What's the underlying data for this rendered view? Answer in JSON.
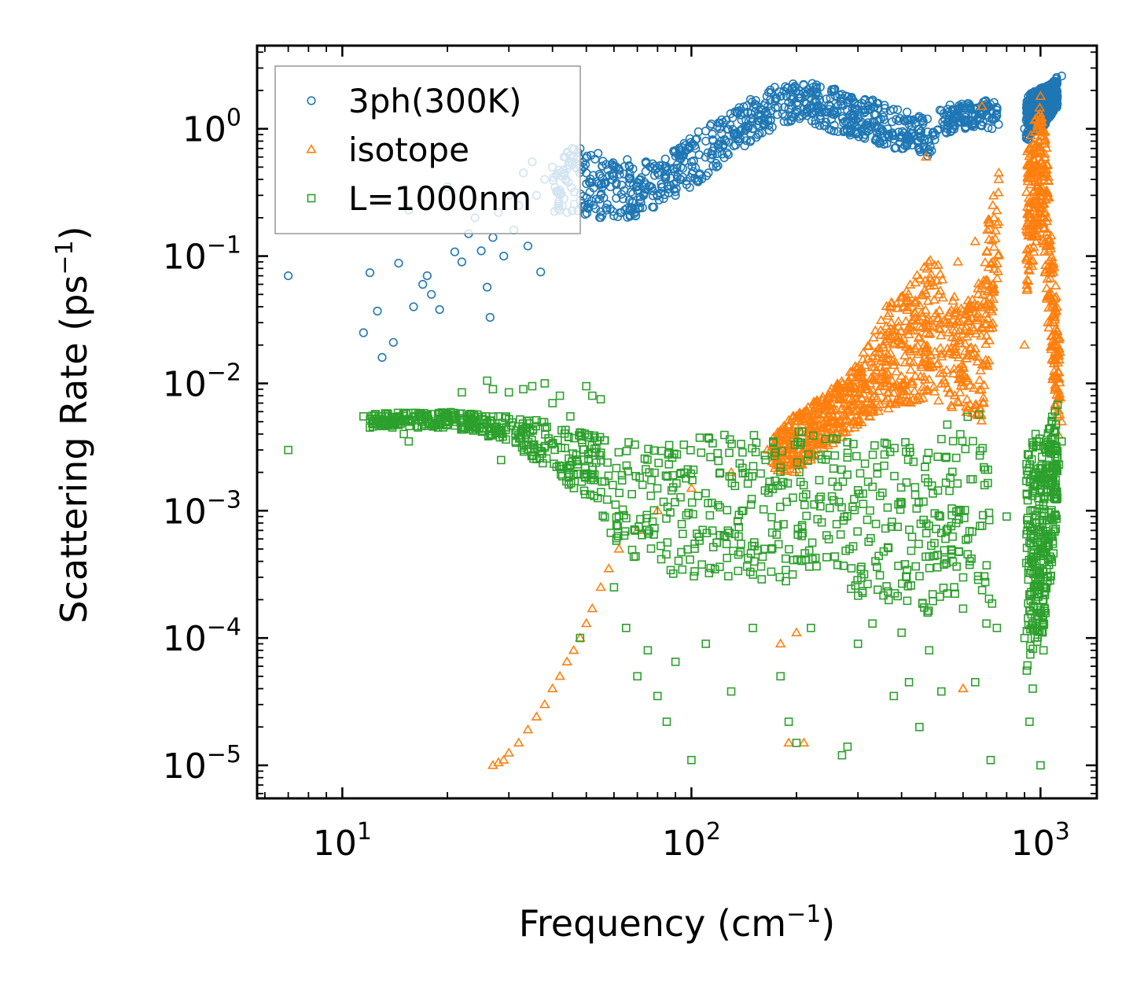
{
  "chart_data": {
    "type": "scatter",
    "xscale": "log",
    "yscale": "log",
    "xlim": [
      5.7,
      1450
    ],
    "ylim": [
      5.5e-06,
      4.5
    ],
    "xlabel": "Frequency (cm",
    "xlabel_sup": "−1",
    "xlabel_end": ")",
    "ylabel": "Scattering Rate (ps",
    "ylabel_sup": "−1",
    "ylabel_end": ")",
    "x_ticks": [
      {
        "value": 10,
        "base": "10",
        "exp": "1"
      },
      {
        "value": 100,
        "base": "10",
        "exp": "2"
      },
      {
        "value": 1000,
        "base": "10",
        "exp": "3"
      }
    ],
    "y_ticks": [
      {
        "value": 1e-05,
        "base": "10",
        "exp": "−5"
      },
      {
        "value": 0.0001,
        "base": "10",
        "exp": "−4"
      },
      {
        "value": 0.001,
        "base": "10",
        "exp": "−3"
      },
      {
        "value": 0.01,
        "base": "10",
        "exp": "−2"
      },
      {
        "value": 0.1,
        "base": "10",
        "exp": "−1"
      },
      {
        "value": 1,
        "base": "10",
        "exp": "0"
      }
    ],
    "legend_position": "top-left",
    "series": [
      {
        "name": "3ph(300K)",
        "marker": "circle",
        "color": "#1f77b4",
        "points": [
          [
            7.0,
            0.07
          ],
          [
            11.5,
            0.025
          ],
          [
            12.0,
            0.074
          ],
          [
            12.6,
            0.037
          ],
          [
            13.0,
            0.016
          ],
          [
            14.0,
            0.021
          ],
          [
            14.5,
            0.088
          ],
          [
            15.5,
            0.23
          ],
          [
            16.0,
            0.04
          ],
          [
            17.0,
            0.06
          ],
          [
            17.5,
            0.07
          ],
          [
            18.0,
            0.05
          ],
          [
            19.0,
            0.038
          ],
          [
            20.0,
            0.35
          ],
          [
            21.0,
            0.108
          ],
          [
            22.0,
            0.09
          ],
          [
            23.0,
            0.15
          ],
          [
            24.0,
            0.2
          ],
          [
            25.0,
            0.11
          ],
          [
            26.0,
            0.057
          ],
          [
            26.5,
            0.033
          ],
          [
            27.0,
            0.14
          ],
          [
            28.0,
            0.22
          ],
          [
            29.0,
            0.1
          ],
          [
            30.0,
            0.3
          ],
          [
            31.0,
            0.16
          ],
          [
            32.0,
            0.25
          ],
          [
            33.0,
            0.45
          ],
          [
            34.0,
            0.12
          ],
          [
            35.0,
            0.55
          ],
          [
            36.0,
            0.3
          ],
          [
            37.0,
            0.075
          ],
          [
            38.0,
            0.4
          ],
          [
            40.0,
            0.5
          ],
          [
            42.0,
            0.33
          ],
          [
            44.0,
            0.22
          ],
          [
            46.0,
            0.6
          ],
          [
            48.0,
            0.7
          ],
          [
            50.0,
            0.45
          ],
          [
            55.0,
            0.3
          ],
          [
            60.0,
            0.5
          ],
          [
            70.0,
            0.35
          ],
          [
            80.0,
            0.45
          ],
          [
            90.0,
            0.3
          ],
          [
            100.0,
            0.55
          ],
          [
            110.0,
            0.8
          ],
          [
            120.0,
            0.7
          ],
          [
            140.0,
            1.0
          ],
          [
            160.0,
            1.4
          ],
          [
            180.0,
            1.8
          ],
          [
            200.0,
            1.6
          ],
          [
            220.0,
            1.9
          ],
          [
            250.0,
            1.5
          ],
          [
            300.0,
            1.2
          ],
          [
            350.0,
            1.0
          ],
          [
            400.0,
            0.85
          ],
          [
            450.0,
            0.7
          ],
          [
            500.0,
            0.9
          ],
          [
            550.0,
            1.2
          ],
          [
            600.0,
            1.4
          ],
          [
            650.0,
            1.3
          ],
          [
            700.0,
            1.5
          ],
          [
            750.0,
            1.4
          ],
          [
            900.0,
            1.0
          ],
          [
            950.0,
            1.8
          ],
          [
            1000.0,
            1.2
          ],
          [
            1050.0,
            1.7
          ],
          [
            1100.0,
            2.2
          ],
          [
            1150.0,
            2.6
          ]
        ],
        "band": [
          [
            40,
            0.22,
            0.75
          ],
          [
            55,
            0.2,
            0.65
          ],
          [
            70,
            0.2,
            0.55
          ],
          [
            85,
            0.28,
            0.6
          ],
          [
            100,
            0.35,
            0.9
          ],
          [
            120,
            0.5,
            1.2
          ],
          [
            140,
            0.7,
            1.6
          ],
          [
            160,
            0.9,
            2.0
          ],
          [
            180,
            1.1,
            2.2
          ],
          [
            210,
            1.2,
            2.4
          ],
          [
            240,
            1.0,
            2.2
          ],
          [
            280,
            0.9,
            1.9
          ],
          [
            330,
            0.8,
            1.7
          ],
          [
            380,
            0.7,
            1.5
          ],
          [
            430,
            0.65,
            1.3
          ],
          [
            480,
            0.6,
            1.2
          ],
          [
            520,
            0.9,
            1.5
          ],
          [
            600,
            1.0,
            1.6
          ],
          [
            700,
            1.0,
            1.7
          ],
          [
            760,
            1.0,
            1.6
          ]
        ],
        "band2": [
          [
            910,
            0.8,
            1.8
          ],
          [
            960,
            0.9,
            2.0
          ],
          [
            1010,
            1.0,
            2.1
          ],
          [
            1060,
            1.2,
            2.2
          ],
          [
            1120,
            1.5,
            2.6
          ]
        ]
      },
      {
        "name": "isotope",
        "marker": "triangle",
        "color": "#ff7f0e",
        "points": [
          [
            27.0,
            1e-05
          ],
          [
            28.0,
            1.05e-05
          ],
          [
            29.0,
            1.1e-05
          ],
          [
            30.0,
            1.25e-05
          ],
          [
            32.0,
            1.5e-05
          ],
          [
            34.0,
            1.9e-05
          ],
          [
            36.0,
            2.4e-05
          ],
          [
            38.0,
            3e-05
          ],
          [
            40.0,
            4e-05
          ],
          [
            42.0,
            5e-05
          ],
          [
            44.0,
            6.5e-05
          ],
          [
            46.0,
            8e-05
          ],
          [
            48.0,
            0.0001
          ],
          [
            50.0,
            0.00013
          ],
          [
            52.0,
            0.00017
          ],
          [
            55.0,
            0.00025
          ],
          [
            58.0,
            0.00035
          ],
          [
            62.0,
            0.0005
          ],
          [
            70.0,
            0.0007
          ],
          [
            80.0,
            0.001
          ],
          [
            100.0,
            0.0015
          ],
          [
            130.0,
            0.002
          ],
          [
            165.0,
            0.003
          ],
          [
            180.0,
            9e-05
          ],
          [
            190.0,
            1.5e-05
          ],
          [
            200.0,
            0.00011
          ],
          [
            210.0,
            1.5e-05
          ],
          [
            220.0,
            0.0025
          ],
          [
            260.0,
            0.004
          ],
          [
            300.0,
            0.005
          ],
          [
            350.0,
            0.015
          ],
          [
            400.0,
            0.02
          ],
          [
            450.0,
            0.028
          ],
          [
            470.0,
            0.6
          ],
          [
            520.0,
            0.017
          ],
          [
            580.0,
            0.09
          ],
          [
            600.0,
            4e-05
          ],
          [
            650.0,
            0.13
          ],
          [
            680.0,
            1.5
          ],
          [
            700.0,
            0.06
          ],
          [
            730.0,
            0.25
          ],
          [
            760.0,
            0.45
          ],
          [
            900.0,
            0.02
          ],
          [
            950.0,
            0.5
          ],
          [
            1000.0,
            1.8
          ],
          [
            1050.0,
            0.03
          ],
          [
            1100.0,
            0.015
          ],
          [
            1150.0,
            0.005
          ]
        ],
        "band": [
          [
            170,
            0.002,
            0.004
          ],
          [
            200,
            0.002,
            0.006
          ],
          [
            240,
            0.003,
            0.008
          ],
          [
            280,
            0.004,
            0.012
          ],
          [
            320,
            0.005,
            0.02
          ],
          [
            360,
            0.006,
            0.04
          ],
          [
            400,
            0.007,
            0.05
          ],
          [
            440,
            0.007,
            0.07
          ],
          [
            480,
            0.008,
            0.1
          ],
          [
            520,
            0.007,
            0.08
          ],
          [
            560,
            0.006,
            0.05
          ],
          [
            600,
            0.006,
            0.04
          ],
          [
            640,
            0.005,
            0.05
          ],
          [
            680,
            0.005,
            0.07
          ],
          [
            720,
            0.02,
            0.3
          ],
          [
            760,
            0.08,
            0.45
          ]
        ],
        "band2": [
          [
            910,
            0.05,
            0.6
          ],
          [
            960,
            0.1,
            1.2
          ],
          [
            1000,
            0.2,
            1.5
          ],
          [
            1040,
            0.05,
            0.8
          ],
          [
            1090,
            0.008,
            0.1
          ],
          [
            1140,
            0.003,
            0.02
          ]
        ]
      },
      {
        "name": "L=1000nm",
        "marker": "square",
        "color": "#2ca02c",
        "points": [
          [
            7.0,
            0.003
          ],
          [
            11.5,
            0.0055
          ],
          [
            12.0,
            0.0045
          ],
          [
            13.0,
            0.0055
          ],
          [
            13.5,
            0.0055
          ],
          [
            14.0,
            0.005
          ],
          [
            14.5,
            0.0055
          ],
          [
            15.0,
            0.004
          ],
          [
            15.5,
            0.0035
          ],
          [
            17.0,
            0.005
          ],
          [
            20.0,
            0.0055
          ],
          [
            21.0,
            0.0055
          ],
          [
            22.0,
            0.0085
          ],
          [
            22.5,
            0.0045
          ],
          [
            24.0,
            0.0045
          ],
          [
            26.0,
            0.0105
          ],
          [
            27.0,
            0.009
          ],
          [
            28.0,
            0.0055
          ],
          [
            28.5,
            0.0025
          ],
          [
            30.0,
            0.0085
          ],
          [
            33.0,
            0.009
          ],
          [
            35.0,
            0.0095
          ],
          [
            38.0,
            0.01
          ],
          [
            40.0,
            0.007
          ],
          [
            42.0,
            0.008
          ],
          [
            45.0,
            0.0055
          ],
          [
            48.0,
            0.0001
          ],
          [
            50.0,
            0.0095
          ],
          [
            52.0,
            0.008
          ],
          [
            55.0,
            0.0075
          ],
          [
            60.0,
            0.00025
          ],
          [
            65.0,
            0.00012
          ],
          [
            70.0,
            5e-05
          ],
          [
            75.0,
            8e-05
          ],
          [
            80.0,
            3.5e-05
          ],
          [
            85.0,
            2.2e-05
          ],
          [
            90.0,
            6.5e-05
          ],
          [
            100.0,
            1.1e-05
          ],
          [
            110.0,
            9e-05
          ],
          [
            130.0,
            3.8e-05
          ],
          [
            150.0,
            0.00012
          ],
          [
            180.0,
            5e-05
          ],
          [
            190.0,
            2.2e-05
          ],
          [
            200.0,
            1.5e-05
          ],
          [
            220.0,
            0.00012
          ],
          [
            270.0,
            1.2e-05
          ],
          [
            280.0,
            1.4e-05
          ],
          [
            300.0,
            9e-05
          ],
          [
            330.0,
            0.00013
          ],
          [
            380.0,
            3.5e-05
          ],
          [
            400.0,
            0.00011
          ],
          [
            420.0,
            4.5e-05
          ],
          [
            450.0,
            2e-05
          ],
          [
            480.0,
            8e-05
          ],
          [
            520.0,
            3.8e-05
          ],
          [
            600.0,
            0.00017
          ],
          [
            650.0,
            4.5e-05
          ],
          [
            700.0,
            0.00013
          ],
          [
            720.0,
            1.1e-05
          ],
          [
            750.0,
            0.00012
          ],
          [
            800.0,
            0.0009
          ],
          [
            900.0,
            0.0001
          ],
          [
            930.0,
            2.2e-05
          ],
          [
            950.0,
            4e-05
          ],
          [
            1000.0,
            1e-05
          ],
          [
            1020.0,
            8e-05
          ],
          [
            1050.0,
            0.0003
          ],
          [
            1100.0,
            0.0015
          ],
          [
            1130.0,
            0.0023
          ],
          [
            1150.0,
            0.0035
          ]
        ],
        "band": [
          [
            12,
            0.0045,
            0.0058
          ],
          [
            20,
            0.0045,
            0.006
          ],
          [
            30,
            0.0035,
            0.0055
          ],
          [
            40,
            0.002,
            0.005
          ],
          [
            50,
            0.0012,
            0.004
          ],
          [
            60,
            0.0006,
            0.004
          ],
          [
            70,
            0.0004,
            0.0035
          ],
          [
            90,
            0.0003,
            0.0035
          ],
          [
            120,
            0.0003,
            0.004
          ],
          [
            150,
            0.0003,
            0.004
          ],
          [
            180,
            0.00025,
            0.004
          ],
          [
            220,
            0.0003,
            0.0045
          ],
          [
            260,
            0.0003,
            0.004
          ],
          [
            300,
            0.0002,
            0.0035
          ],
          [
            360,
            0.0002,
            0.0035
          ],
          [
            420,
            0.00015,
            0.0035
          ],
          [
            480,
            0.00015,
            0.004
          ],
          [
            520,
            0.0002,
            0.004
          ],
          [
            560,
            0.0002,
            0.006
          ],
          [
            620,
            0.0003,
            0.006
          ],
          [
            680,
            0.0002,
            0.006
          ],
          [
            740,
            0.00015,
            0.004
          ]
        ],
        "band2": [
          [
            910,
            5e-05,
            0.003
          ],
          [
            960,
            8e-05,
            0.004
          ],
          [
            1010,
            0.0001,
            0.004
          ],
          [
            1060,
            0.0002,
            0.005
          ],
          [
            1120,
            0.001,
            0.007
          ]
        ]
      }
    ]
  }
}
